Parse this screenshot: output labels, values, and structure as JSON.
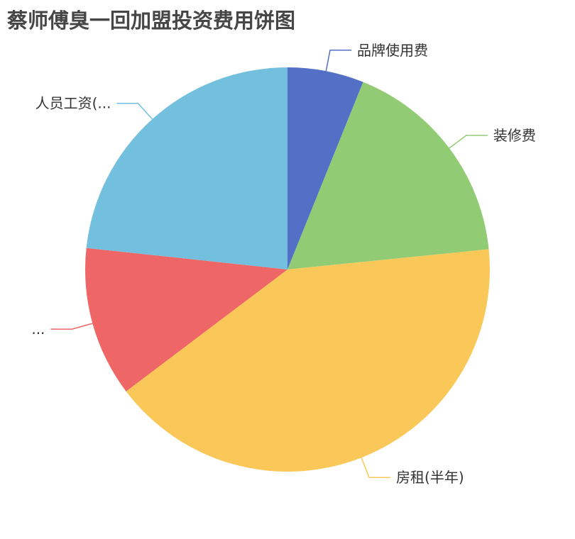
{
  "chart_data": {
    "type": "pie",
    "title": "蔡师傅臭一回加盟投资费用饼图",
    "start_angle": "top, clockwise",
    "slices": [
      {
        "label": "品牌使用费",
        "value": 6.1,
        "color": "#5470c6"
      },
      {
        "label": "装修费",
        "value": 17.3,
        "color": "#91cc75"
      },
      {
        "label": "房租(半年)",
        "value": 41.3,
        "color": "#fac858"
      },
      {
        "label": "...",
        "value": 12.0,
        "color": "#ee6666"
      },
      {
        "label": "人员工资(...",
        "value": 23.3,
        "color": "#73c0de"
      }
    ]
  }
}
